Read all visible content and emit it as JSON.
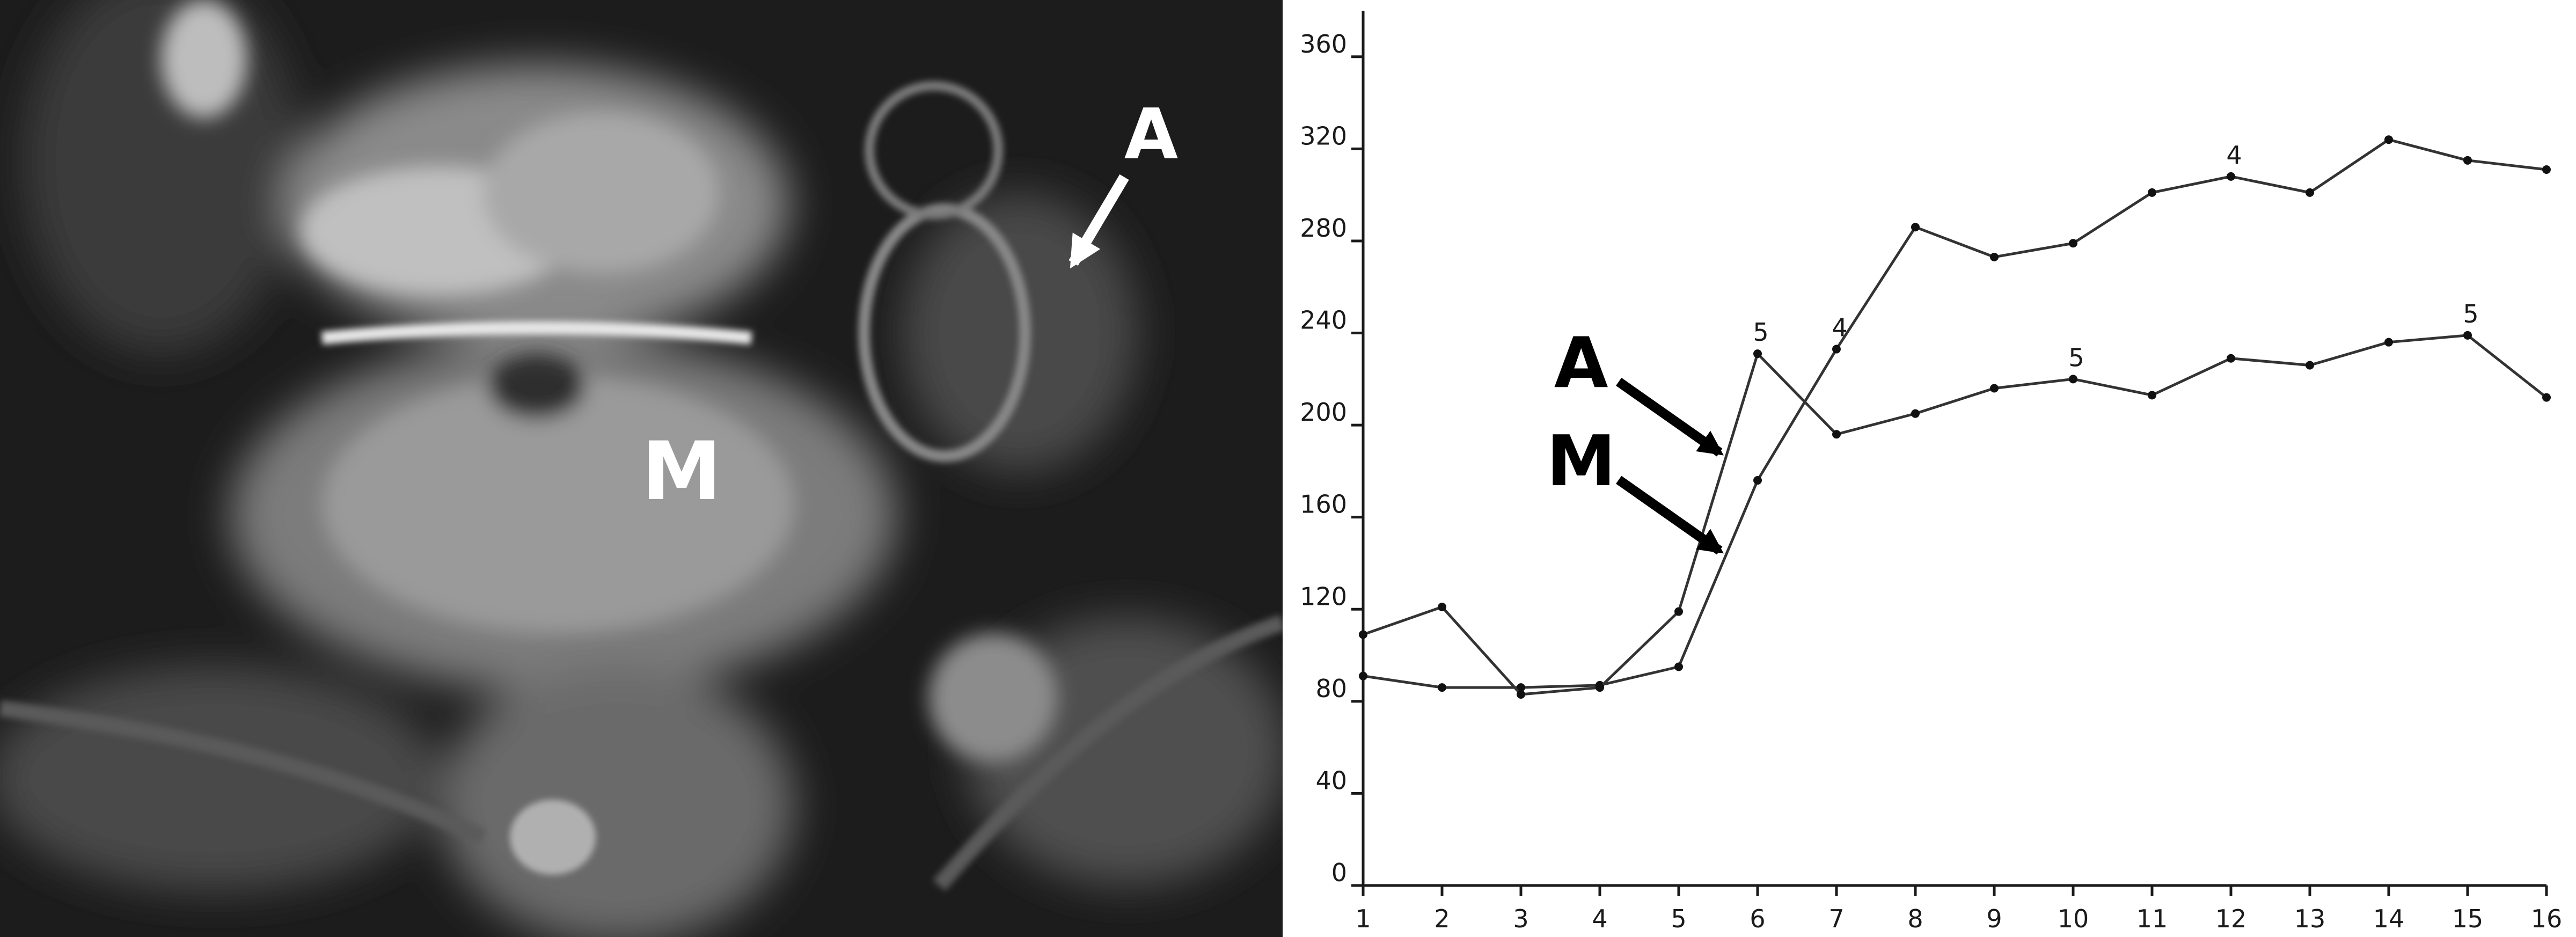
{
  "mri_image": {
    "labels": {
      "mass": "M",
      "appendix": "A"
    }
  },
  "chart_data": {
    "type": "line",
    "title": "",
    "xlabel": "",
    "ylabel": "",
    "x": [
      1,
      2,
      3,
      4,
      5,
      6,
      7,
      8,
      9,
      10,
      11,
      12,
      13,
      14,
      15,
      16
    ],
    "xlim": [
      1,
      16
    ],
    "ylim": [
      0,
      380
    ],
    "x_ticks": [
      1,
      2,
      3,
      4,
      5,
      6,
      7,
      8,
      9,
      10,
      11,
      12,
      13,
      14,
      15,
      16
    ],
    "y_ticks": [
      0,
      40,
      80,
      120,
      160,
      200,
      240,
      280,
      320,
      360
    ],
    "grid": false,
    "series": [
      {
        "name": "M",
        "values": [
          91,
          86,
          86,
          87,
          95,
          176,
          233,
          286,
          273,
          279,
          301,
          308,
          301,
          324,
          315,
          311
        ]
      },
      {
        "name": "A",
        "values": [
          109,
          121,
          83,
          86,
          119,
          231,
          196,
          205,
          216,
          220,
          213,
          229,
          226,
          236,
          239,
          212
        ]
      }
    ],
    "point_labels": [
      {
        "x": 7,
        "y": 233,
        "text": "4"
      },
      {
        "x": 12,
        "y": 308,
        "text": "4"
      },
      {
        "x": 6,
        "y": 231,
        "text": "5"
      },
      {
        "x": 10,
        "y": 220,
        "text": "5"
      },
      {
        "x": 15,
        "y": 239,
        "text": "5"
      }
    ],
    "annotations": [
      {
        "text": "M",
        "series": "M"
      },
      {
        "text": "A",
        "series": "A"
      }
    ],
    "colors": {
      "line": "#333333",
      "axis": "#1a1a1a",
      "arrow": "#000000"
    }
  }
}
